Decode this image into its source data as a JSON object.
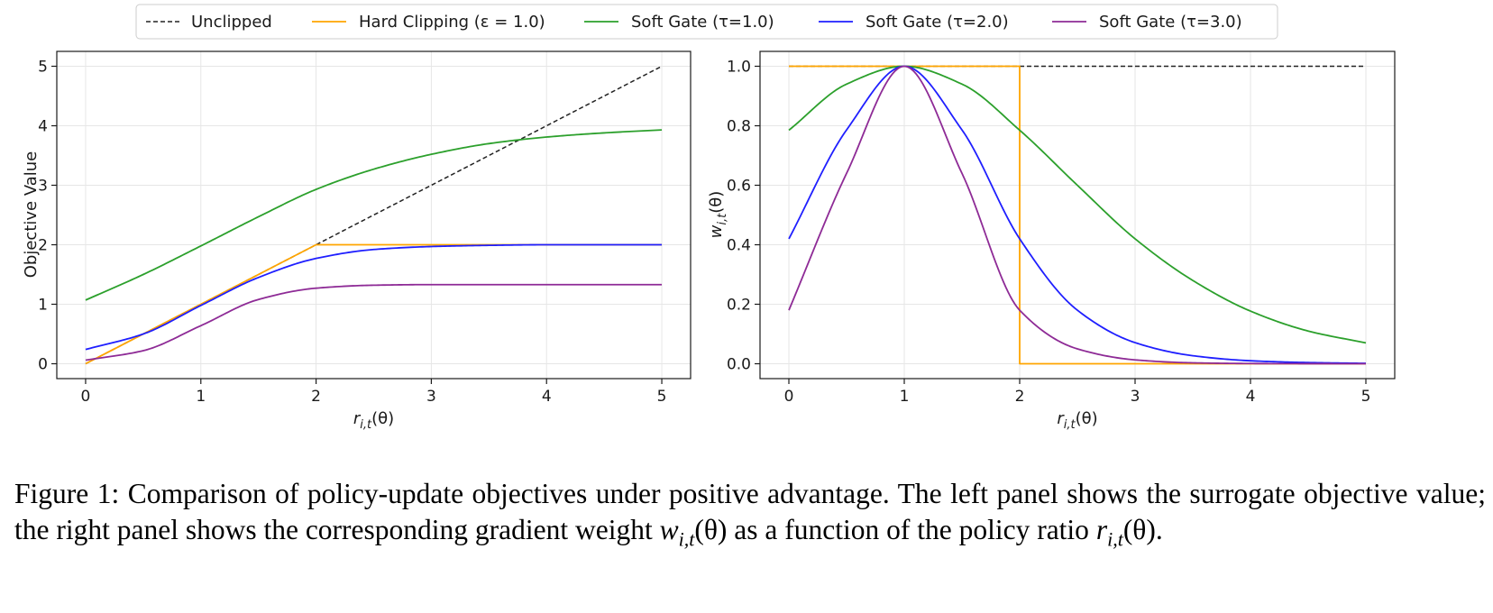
{
  "legend": [
    {
      "label": "Unclipped",
      "color": "#222222",
      "dash": true
    },
    {
      "label": "Hard Clipping (ε = 1.0)",
      "color": "#ffa500",
      "dash": false
    },
    {
      "label": "Soft Gate (τ=1.0)",
      "color": "#2ca02c",
      "dash": false
    },
    {
      "label": "Soft Gate (τ=2.0)",
      "color": "#1f1fff",
      "dash": false
    },
    {
      "label": "Soft Gate (τ=3.0)",
      "color": "#8e2b96",
      "dash": false
    }
  ],
  "chart_data": [
    {
      "type": "line",
      "xlabel": "r_{i,t}(θ)",
      "ylabel": "Objective Value",
      "xlim": [
        -0.25,
        5.25
      ],
      "ylim": [
        -0.25,
        5.25
      ],
      "xticks": [
        "0",
        "1",
        "2",
        "3",
        "4",
        "5"
      ],
      "yticks": [
        "0",
        "1",
        "2",
        "3",
        "4",
        "5"
      ],
      "grid": true,
      "series": [
        {
          "name": "Unclipped",
          "x": [
            0,
            5
          ],
          "y": [
            0,
            5
          ]
        },
        {
          "name": "Hard Clipping (ε = 1.0)",
          "x": [
            0,
            2,
            5
          ],
          "y": [
            0,
            2,
            2
          ]
        },
        {
          "name": "Soft Gate (τ=1.0)",
          "x": [
            0,
            0.5,
            1,
            1.5,
            2,
            2.5,
            3,
            3.5,
            4,
            4.5,
            5
          ],
          "y": [
            1.07,
            1.5,
            1.98,
            2.47,
            2.93,
            3.27,
            3.52,
            3.7,
            3.81,
            3.88,
            3.93
          ]
        },
        {
          "name": "Soft Gate (τ=2.0)",
          "x": [
            0,
            0.5,
            1,
            1.5,
            2,
            2.5,
            3,
            3.5,
            4,
            4.5,
            5
          ],
          "y": [
            0.24,
            0.5,
            0.98,
            1.45,
            1.77,
            1.92,
            1.97,
            1.99,
            2.0,
            2.0,
            2.0
          ]
        },
        {
          "name": "Soft Gate (τ=3.0)",
          "x": [
            0,
            0.5,
            1,
            1.5,
            2,
            2.5,
            3,
            3.5,
            4,
            4.5,
            5
          ],
          "y": [
            0.06,
            0.22,
            0.64,
            1.08,
            1.27,
            1.32,
            1.33,
            1.33,
            1.33,
            1.33,
            1.33
          ]
        }
      ]
    },
    {
      "type": "line",
      "xlabel": "r_{i,t}(θ)",
      "ylabel": "w_{i,t}(θ)",
      "xlim": [
        -0.25,
        5.25
      ],
      "ylim": [
        -0.05,
        1.05
      ],
      "xticks": [
        "0",
        "1",
        "2",
        "3",
        "4",
        "5"
      ],
      "yticks": [
        "0.0",
        "0.2",
        "0.4",
        "0.6",
        "0.8",
        "1.0"
      ],
      "grid": true,
      "series": [
        {
          "name": "Unclipped",
          "x": [
            0,
            5
          ],
          "y": [
            1.0,
            1.0
          ]
        },
        {
          "name": "Hard Clipping (ε = 1.0)",
          "x": [
            0,
            2,
            2,
            5
          ],
          "y": [
            1.0,
            1.0,
            0.0,
            0.0
          ]
        },
        {
          "name": "Soft Gate (τ=1.0)",
          "x": [
            0,
            0.5,
            1,
            1.5,
            2,
            2.5,
            3,
            3.5,
            4,
            4.5,
            5
          ],
          "y": [
            0.785,
            0.94,
            1.0,
            0.94,
            0.785,
            0.6,
            0.42,
            0.28,
            0.177,
            0.11,
            0.07
          ]
        },
        {
          "name": "Soft Gate (τ=2.0)",
          "x": [
            0,
            0.5,
            1,
            1.5,
            2,
            2.5,
            3,
            3.5,
            4,
            4.5,
            5
          ],
          "y": [
            0.42,
            0.786,
            1.0,
            0.786,
            0.42,
            0.18,
            0.071,
            0.027,
            0.01,
            0.004,
            0.0013
          ]
        },
        {
          "name": "Soft Gate (τ=3.0)",
          "x": [
            0,
            0.5,
            1,
            1.5,
            2,
            2.5,
            3,
            3.5,
            4,
            4.5,
            5
          ],
          "y": [
            0.18,
            0.64,
            1.0,
            0.64,
            0.18,
            0.05,
            0.013,
            0.003,
            0.0007,
            0.0002,
            0.0
          ]
        }
      ]
    }
  ],
  "caption": {
    "part1": "Figure 1: Comparison of policy-update objectives under positive advantage. The left panel shows the surrogate objective value; the right panel shows the corresponding gradient weight ",
    "w_sym": "w",
    "w_sub": "i,t",
    "w_arg": "(θ)",
    "part2": " as a function of the policy ratio ",
    "r_sym": "r",
    "r_sub": "i,t",
    "r_arg": "(θ)",
    "part3": "."
  }
}
